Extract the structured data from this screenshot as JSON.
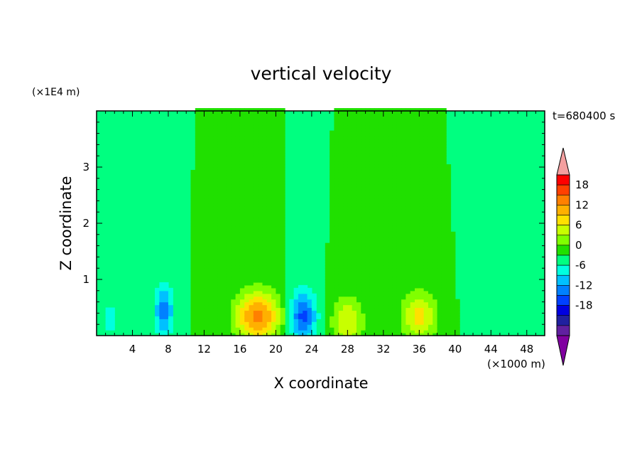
{
  "chart_data": {
    "type": "heatmap",
    "title": "vertical velocity",
    "time_label": "t=680400 s",
    "xlabel": "X coordinate",
    "ylabel": "Z coordinate",
    "x_unit": "(×1000 m)",
    "y_unit": "(×1E4 m)",
    "xlim": [
      0,
      50
    ],
    "ylim": [
      0,
      4
    ],
    "x_ticks": [
      "4",
      "8",
      "12",
      "16",
      "20",
      "24",
      "28",
      "32",
      "36",
      "40",
      "44",
      "48"
    ],
    "y_ticks": [
      "1",
      "2",
      "3"
    ],
    "colorbar": {
      "ticks": [
        "18",
        "12",
        "6",
        "0",
        "-6",
        "-12",
        "-18"
      ],
      "levels": [
        21,
        18,
        15,
        12,
        9,
        6,
        3,
        0,
        -3,
        -6,
        -9,
        -12,
        -15,
        -18,
        -21
      ],
      "colors": [
        "#ff0000",
        "#ff4000",
        "#ff8000",
        "#ffb000",
        "#ffe000",
        "#c8ff00",
        "#80ff00",
        "#20e000",
        "#00ff80",
        "#00ffe0",
        "#00c0ff",
        "#0080ff",
        "#0040ff",
        "#0000e0",
        "#2020a0",
        "#6020a0"
      ],
      "over_color": "#f4a0a0",
      "under_color": "#8000a0"
    },
    "features": [
      {
        "x": 18,
        "z": 0.35,
        "w": 5.0,
        "peak": 16
      },
      {
        "x": 28,
        "z": 0.25,
        "w": 3.5,
        "peak": 9
      },
      {
        "x": 36,
        "z": 0.35,
        "w": 4.0,
        "peak": 10
      },
      {
        "x": 7.5,
        "z": 0.45,
        "w": 2.0,
        "peak": -11
      },
      {
        "x": 23,
        "z": 0.35,
        "w": 3.0,
        "peak": -13
      },
      {
        "x": 1.5,
        "z": 0.3,
        "w": 2.0,
        "peak": -4
      },
      {
        "x": 45,
        "z": 0.5,
        "w": 5.0,
        "peak": -3
      }
    ]
  }
}
